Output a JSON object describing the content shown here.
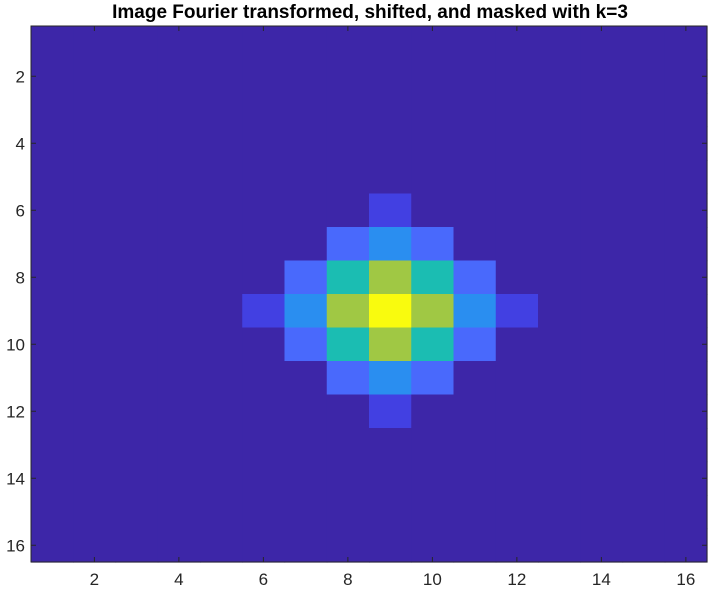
{
  "chart_data": {
    "type": "heatmap",
    "title": "Image Fourier transformed, shifted, and masked with k=3",
    "xlabel": "",
    "ylabel": "",
    "xlim": [
      0.5,
      16.5
    ],
    "ylim": [
      0.5,
      16.5
    ],
    "y_direction": "reversed (1 at top)",
    "x_ticks": [
      "2",
      "4",
      "6",
      "8",
      "10",
      "12",
      "14",
      "16"
    ],
    "y_ticks": [
      "2",
      "4",
      "6",
      "8",
      "10",
      "12",
      "14",
      "16"
    ],
    "grid": false,
    "colormap": "parula",
    "colors": {
      "background_cell": "#3D26A8",
      "figure_background": "#FFFFFF",
      "axis": "#262626"
    },
    "rows": 16,
    "cols": 16,
    "background_value": 0,
    "nonzero_cells": [
      {
        "row": 6,
        "col": 9,
        "value": 0.1
      },
      {
        "row": 7,
        "col": 8,
        "value": 0.22
      },
      {
        "row": 7,
        "col": 9,
        "value": 0.35
      },
      {
        "row": 7,
        "col": 10,
        "value": 0.22
      },
      {
        "row": 8,
        "col": 7,
        "value": 0.22
      },
      {
        "row": 8,
        "col": 8,
        "value": 0.55
      },
      {
        "row": 8,
        "col": 9,
        "value": 0.78
      },
      {
        "row": 8,
        "col": 10,
        "value": 0.55
      },
      {
        "row": 8,
        "col": 11,
        "value": 0.22
      },
      {
        "row": 9,
        "col": 6,
        "value": 0.1
      },
      {
        "row": 9,
        "col": 7,
        "value": 0.35
      },
      {
        "row": 9,
        "col": 8,
        "value": 0.78
      },
      {
        "row": 9,
        "col": 9,
        "value": 1.0
      },
      {
        "row": 9,
        "col": 10,
        "value": 0.78
      },
      {
        "row": 9,
        "col": 11,
        "value": 0.35
      },
      {
        "row": 9,
        "col": 12,
        "value": 0.1
      },
      {
        "row": 10,
        "col": 7,
        "value": 0.22
      },
      {
        "row": 10,
        "col": 8,
        "value": 0.55
      },
      {
        "row": 10,
        "col": 9,
        "value": 0.78
      },
      {
        "row": 10,
        "col": 10,
        "value": 0.55
      },
      {
        "row": 10,
        "col": 11,
        "value": 0.22
      },
      {
        "row": 11,
        "col": 8,
        "value": 0.22
      },
      {
        "row": 11,
        "col": 9,
        "value": 0.35
      },
      {
        "row": 11,
        "col": 10,
        "value": 0.22
      },
      {
        "row": 12,
        "col": 9,
        "value": 0.1
      }
    ]
  }
}
